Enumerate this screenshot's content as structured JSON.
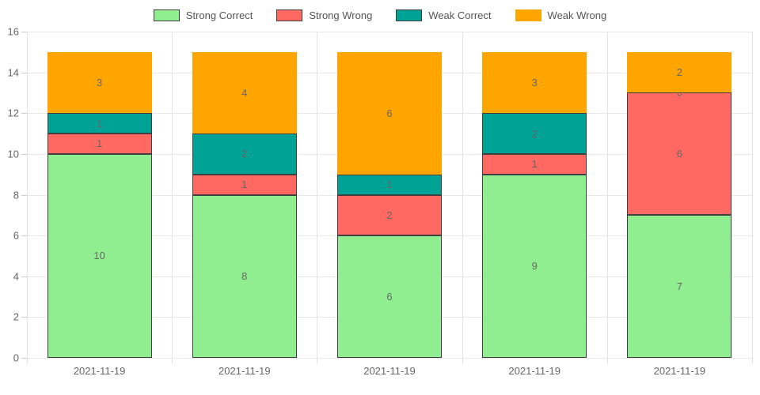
{
  "chart_data": {
    "type": "bar",
    "stacked": true,
    "title": "",
    "xlabel": "",
    "ylabel": "",
    "categories": [
      "2021-11-19",
      "2021-11-19",
      "2021-11-19",
      "2021-11-19",
      "2021-11-19"
    ],
    "series": [
      {
        "name": "Strong Correct",
        "color": "#90EE90",
        "border_color": "#3f3f3f",
        "values": [
          10,
          8,
          6,
          9,
          7
        ]
      },
      {
        "name": "Strong Wrong",
        "color": "#FF6961",
        "border_color": "#3f3f3f",
        "values": [
          1,
          1,
          2,
          1,
          6
        ]
      },
      {
        "name": "Weak Correct",
        "color": "#00A296",
        "border_color": "#3f3f3f",
        "values": [
          1,
          2,
          1,
          2,
          0
        ]
      },
      {
        "name": "Weak Wrong",
        "color": "#FFA500",
        "border_color": null,
        "values": [
          3,
          4,
          6,
          3,
          2
        ]
      }
    ],
    "bar_totals": [
      15,
      15,
      15,
      15,
      15
    ],
    "ylim": [
      0,
      16
    ],
    "ytick_step": 2,
    "ytick_labels": [
      "0",
      "2",
      "4",
      "6",
      "8",
      "10",
      "12",
      "14",
      "16"
    ],
    "grid": true,
    "legend_position": "top",
    "value_label_color": "#666666",
    "axis_text_color": "#666666"
  }
}
